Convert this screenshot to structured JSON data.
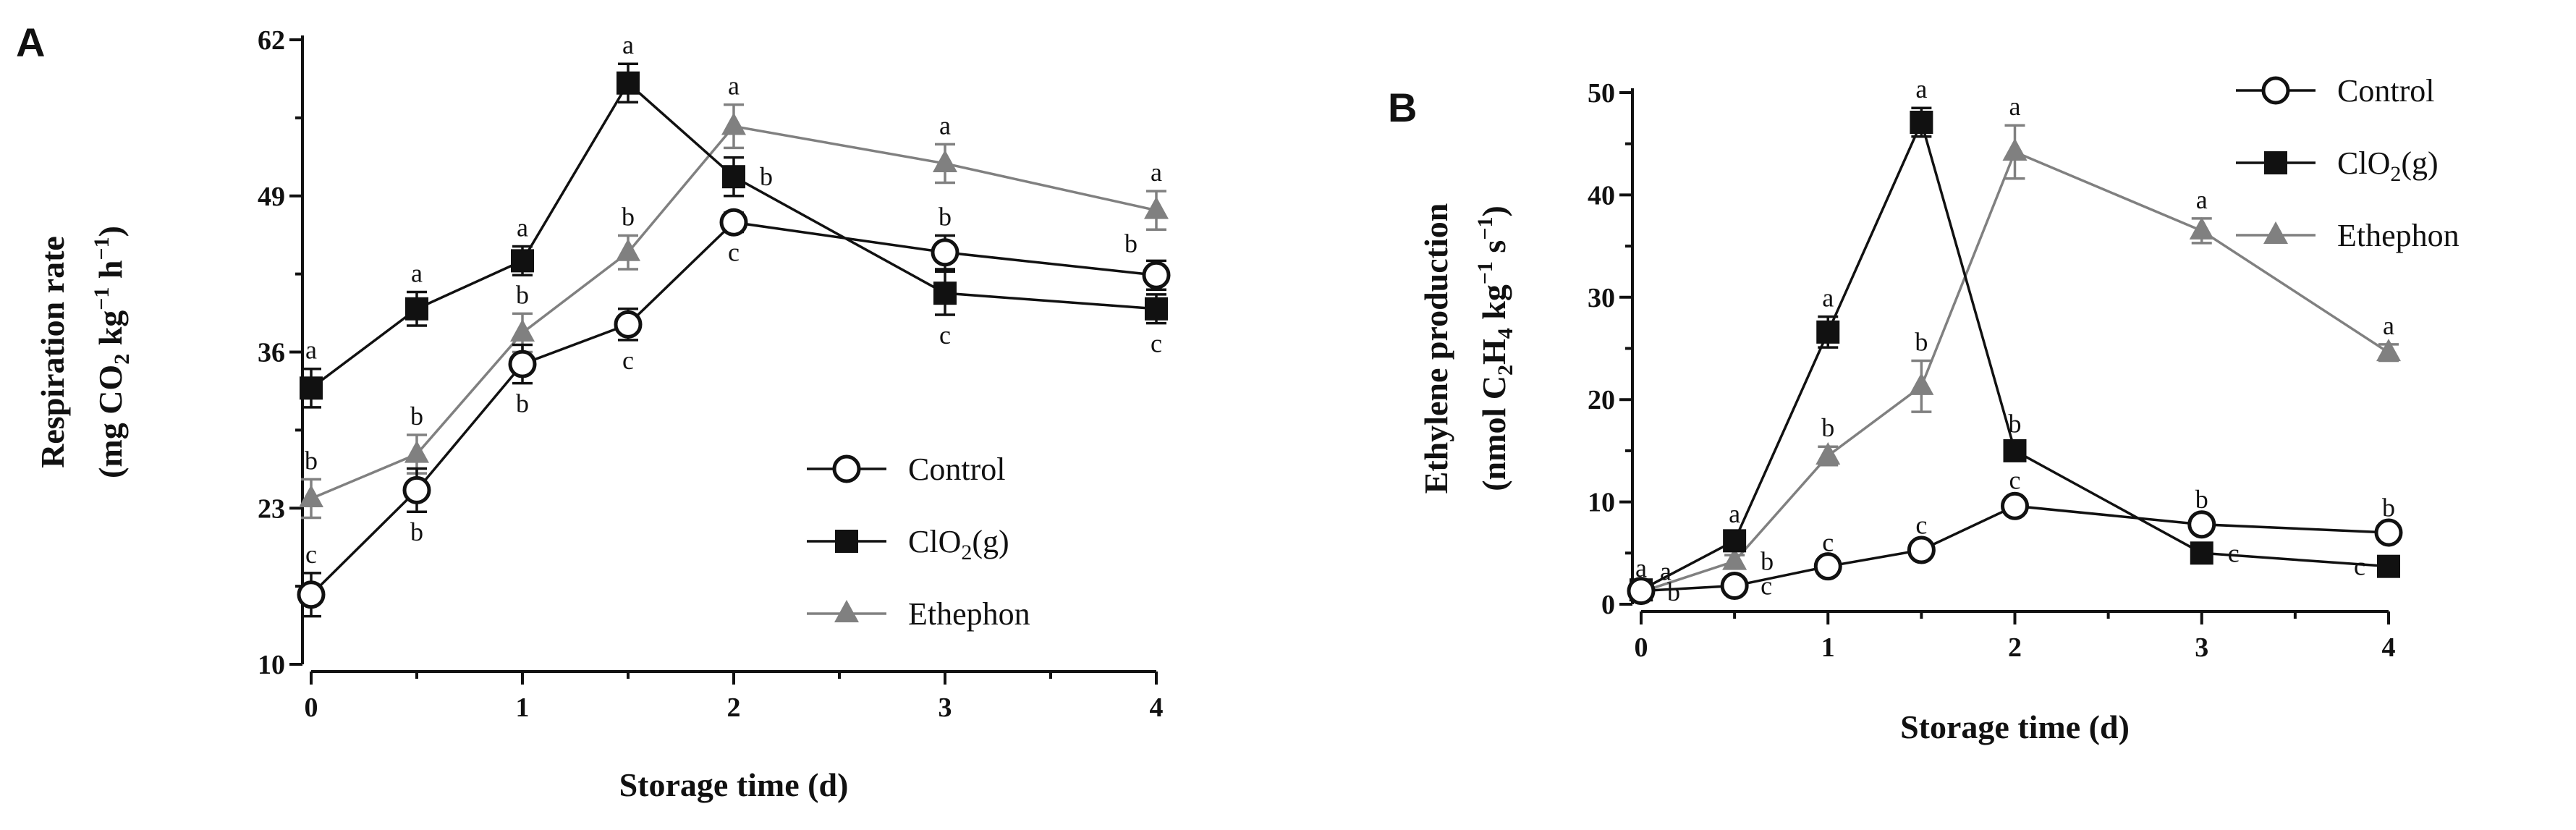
{
  "colors": {
    "control": "#111111",
    "clo2": "#111111",
    "ethephon": "#808080",
    "axis": "#111111"
  },
  "chart_data": [
    {
      "panel": "A",
      "type": "line",
      "xlabel": "Storage time (d)",
      "ylabel_line1": "Respiration rate",
      "ylabel_line2": {
        "pre": "(mg CO",
        "sub": "2",
        "mid": " kg",
        "sup1": "−1",
        "mid2": " h",
        "sup2": "−1",
        "post": ")"
      },
      "xticks": [
        0,
        1,
        2,
        3,
        4
      ],
      "xtick_labels": [
        "0",
        "1",
        "2",
        "3",
        "4"
      ],
      "yticks": [
        10,
        23,
        36,
        49,
        62
      ],
      "ytick_labels": [
        "10",
        "23",
        "36",
        "49",
        "62"
      ],
      "xlim": [
        0,
        4
      ],
      "ylim": [
        10,
        62
      ],
      "legend_position": "bottom-right",
      "series": [
        {
          "name": "Control",
          "marker": "open-circle",
          "x": [
            0,
            0.5,
            1,
            1.5,
            2,
            3,
            4
          ],
          "y": [
            15.8,
            24.5,
            35,
            38.3,
            46.8,
            44.3,
            42.4
          ],
          "err": [
            1.8,
            1.8,
            1.6,
            1.3,
            0.8,
            1.4,
            1.2
          ],
          "letters": [
            "c",
            "b",
            "b",
            "c",
            "c",
            "b",
            "b"
          ],
          "letter_pos": [
            "above",
            "below",
            "below",
            "below",
            "below",
            "above",
            "above-left"
          ]
        },
        {
          "name": "ClO2(g)",
          "legend_label": {
            "pre": "ClO",
            "sub": "2",
            "post": "(g)"
          },
          "marker": "filled-square",
          "x": [
            0,
            0.5,
            1,
            1.5,
            2,
            3,
            4
          ],
          "y": [
            33,
            39.6,
            43.6,
            58.4,
            50.6,
            40.9,
            39.6
          ],
          "err": [
            1.6,
            1.4,
            1.2,
            1.6,
            1.6,
            1.8,
            1.2
          ],
          "letters": [
            "a",
            "a",
            "a",
            "a",
            "b",
            "c",
            "c"
          ],
          "letter_pos": [
            "above",
            "above",
            "above",
            "above",
            "right",
            "below",
            "below"
          ]
        },
        {
          "name": "Ethephon",
          "marker": "filled-triangle",
          "x": [
            0,
            0.5,
            1,
            1.5,
            2,
            3,
            4
          ],
          "y": [
            23.8,
            27.5,
            37.6,
            44.3,
            54.8,
            51.7,
            47.8
          ],
          "err": [
            1.6,
            1.6,
            1.6,
            1.4,
            1.8,
            1.6,
            1.6
          ],
          "letters": [
            "b",
            "b",
            "b",
            "b",
            "a",
            "a",
            "a"
          ],
          "letter_pos": [
            "above",
            "above",
            "above",
            "above",
            "above",
            "above",
            "above"
          ]
        }
      ]
    },
    {
      "panel": "B",
      "type": "line",
      "xlabel": "Storage time (d)",
      "ylabel_line1": "Ethylene production",
      "ylabel_line2": {
        "pre": "(nmol C",
        "sub1": "2",
        "mid": "H",
        "sub2": "4",
        "mid2": " kg",
        "sup1": "−1",
        "mid3": " s",
        "sup2": "−1",
        "post": ")"
      },
      "xticks": [
        0,
        1,
        2,
        3,
        4
      ],
      "xtick_labels": [
        "0",
        "1",
        "2",
        "3",
        "4"
      ],
      "yticks": [
        0,
        10,
        20,
        30,
        40,
        50
      ],
      "ytick_labels": [
        "0",
        "10",
        "20",
        "30",
        "40",
        "50"
      ],
      "xlim": [
        0,
        4
      ],
      "ylim": [
        0,
        50
      ],
      "legend_position": "top-right",
      "series": [
        {
          "name": "Control",
          "marker": "open-circle",
          "x": [
            0,
            0.5,
            1,
            1.5,
            2,
            3,
            4
          ],
          "y": [
            1.3,
            1.8,
            3.7,
            5.3,
            9.6,
            7.8,
            7
          ],
          "err": [
            0.4,
            0.4,
            0.5,
            0.6,
            0.7,
            0.6,
            0.6
          ],
          "letters": [
            "a",
            "c",
            "c",
            "c",
            "c",
            "b",
            "b"
          ],
          "letter_pos": [
            "above",
            "right",
            "above",
            "above",
            "above",
            "above",
            "above"
          ]
        },
        {
          "name": "ClO2(g)",
          "legend_label": {
            "pre": "ClO",
            "sub": "2",
            "post": "(g)"
          },
          "marker": "filled-square",
          "x": [
            0,
            0.5,
            1,
            1.5,
            2,
            3,
            4
          ],
          "y": [
            1.4,
            6.2,
            26.6,
            47.1,
            15,
            5,
            3.7
          ],
          "err": [
            0.4,
            0.8,
            1.5,
            1.4,
            0.8,
            0.5,
            0.4
          ],
          "letters": [
            "a",
            "a",
            "a",
            "a",
            "b",
            "c",
            "c"
          ],
          "letter_pos": [
            "above-right",
            "above",
            "above",
            "above",
            "above",
            "right",
            "left"
          ]
        },
        {
          "name": "Ethephon",
          "marker": "filled-triangle",
          "x": [
            0,
            0.5,
            1,
            1.5,
            2,
            3,
            4
          ],
          "y": [
            1.2,
            4.2,
            14.5,
            21.3,
            44.2,
            36.5,
            24.6
          ],
          "err": [
            0.3,
            0.6,
            0.9,
            2.5,
            2.6,
            1.2,
            0.8
          ],
          "letters": [
            "b",
            "b",
            "b",
            "b",
            "a",
            "a",
            "a"
          ],
          "letter_pos": [
            "right",
            "right",
            "above",
            "above",
            "above",
            "above",
            "above"
          ]
        }
      ]
    }
  ]
}
